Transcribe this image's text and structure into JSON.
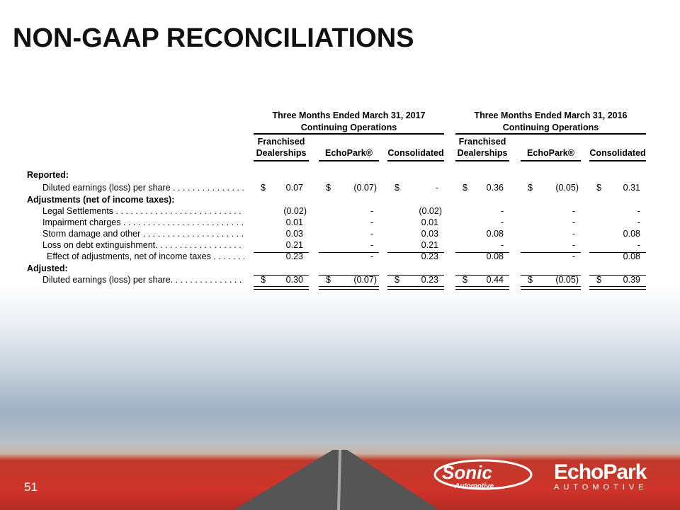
{
  "title": "NON-GAAP RECONCILIATIONS",
  "page_number": "51",
  "periods": [
    {
      "title": "Three Months Ended March 31, 2017",
      "subtitle": "Continuing Operations"
    },
    {
      "title": "Three Months Ended March 31, 2016",
      "subtitle": "Continuing Operations"
    }
  ],
  "columns": [
    {
      "line1": "Franchised",
      "line2": "Dealerships"
    },
    {
      "line1": "",
      "line2": "EchoPark®"
    },
    {
      "line1": "",
      "line2": "Consolidated"
    },
    {
      "line1": "Franchised",
      "line2": "Dealerships"
    },
    {
      "line1": "",
      "line2": "EchoPark®"
    },
    {
      "line1": "",
      "line2": "Consolidated"
    }
  ],
  "rows": [
    {
      "label": "Reported:",
      "type": "section"
    },
    {
      "label": "Diluted earnings (loss) per share . . . . . . . . . . . . . . . . .",
      "indent": 1,
      "dollar": true,
      "values": [
        "0.07",
        "(0.07)",
        "-",
        "0.36",
        "(0.05)",
        "0.31"
      ]
    },
    {
      "label": "Adjustments (net of income taxes):",
      "type": "section"
    },
    {
      "label": "Legal Settlements . . . . . . . . . . . . . . . . . . . . . . . . . . . . . . .",
      "indent": 1,
      "values": [
        "(0.02)",
        "-",
        "(0.02)",
        "-",
        "-",
        "-"
      ]
    },
    {
      "label": "Impairment charges . . . . . . . . . . . . . . . . . . . . . . . . . . . . .",
      "indent": 1,
      "values": [
        "0.01",
        "-",
        "0.01",
        "-",
        "-",
        "-"
      ]
    },
    {
      "label": "Storm damage and other . . . . . . . . . . . . . . . . . . . . . . . . .",
      "indent": 1,
      "values": [
        "0.03",
        "-",
        "0.03",
        "0.08",
        "-",
        "0.08"
      ]
    },
    {
      "label": "Loss on debt extinguishment. . . . . . . . . . . . . . . . . . . . . .",
      "indent": 1,
      "values": [
        "0.21",
        "-",
        "0.21",
        "-",
        "-",
        "-"
      ]
    },
    {
      "label": "Effect of adjustments, net of income taxes . . . . . . . .",
      "indent": 2,
      "values": [
        "0.23",
        "-",
        "0.23",
        "0.08",
        "-",
        "0.08"
      ]
    },
    {
      "label": "Adjusted:",
      "type": "section"
    },
    {
      "label": "Diluted earnings (loss) per share. . . . . . . . . . . . . . . . . .",
      "indent": 1,
      "dollar": true,
      "values": [
        "0.30",
        "(0.07)",
        "0.23",
        "0.44",
        "(0.05)",
        "0.39"
      ]
    }
  ],
  "logos": {
    "sonic": "Sonic Automotive",
    "echopark": "EchoPark",
    "echopark_sub": "AUTOMOTIVE"
  }
}
